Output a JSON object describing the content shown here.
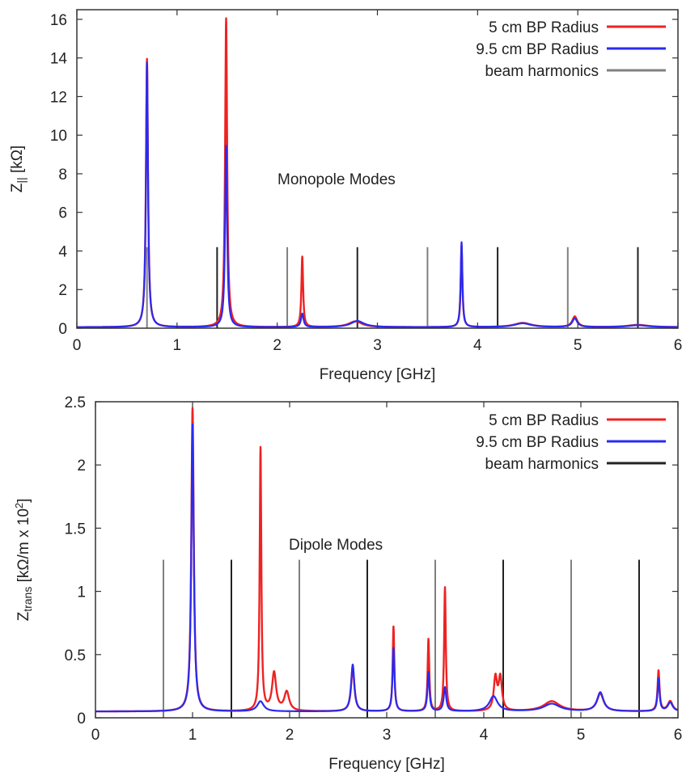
{
  "chart_data": [
    {
      "type": "line",
      "annotation": "Monopole Modes",
      "xlabel": "Frequency [GHz]",
      "ylabel_main": "Z",
      "ylabel_sub": "||",
      "ylabel_unit": " [kΩ]",
      "xlim": [
        0,
        6
      ],
      "ylim": [
        0,
        16.5
      ],
      "xticks": [
        0,
        1,
        2,
        3,
        4,
        5,
        6
      ],
      "yticks": [
        0,
        2,
        4,
        6,
        8,
        10,
        12,
        14,
        16
      ],
      "legend_position": "top-right",
      "colors": {
        "red": "#ee2222",
        "blue": "#2a2af0",
        "gray": "#7a7a7a",
        "black": "#222222"
      },
      "harmonics": {
        "name": "beam harmonics",
        "height": 4.2,
        "x": [
          0.7,
          1.4,
          2.1,
          2.8,
          3.5,
          4.2,
          4.9,
          5.6
        ]
      },
      "series": [
        {
          "name": "5 cm BP Radius",
          "color": "#ee2222",
          "baseline": 0.05,
          "features": [
            {
              "x": 0.7,
              "peak": 13.9,
              "width": 0.012
            },
            {
              "x": 1.49,
              "peak": 16.0,
              "width": 0.012
            },
            {
              "x": 2.25,
              "peak": 3.65,
              "width": 0.01
            },
            {
              "x": 2.78,
              "peak": 0.3,
              "width": 0.08
            },
            {
              "x": 3.84,
              "peak": 4.2,
              "width": 0.01
            },
            {
              "x": 4.45,
              "peak": 0.22,
              "width": 0.1
            },
            {
              "x": 4.97,
              "peak": 0.55,
              "width": 0.03
            },
            {
              "x": 5.6,
              "peak": 0.12,
              "width": 0.12
            }
          ]
        },
        {
          "name": "9.5 cm BP Radius",
          "color": "#2a2af0",
          "baseline": 0.05,
          "features": [
            {
              "x": 0.7,
              "peak": 13.7,
              "width": 0.012
            },
            {
              "x": 1.49,
              "peak": 9.4,
              "width": 0.012
            },
            {
              "x": 2.25,
              "peak": 0.7,
              "width": 0.015
            },
            {
              "x": 2.8,
              "peak": 0.32,
              "width": 0.08
            },
            {
              "x": 3.84,
              "peak": 4.4,
              "width": 0.01
            },
            {
              "x": 4.45,
              "peak": 0.2,
              "width": 0.1
            },
            {
              "x": 4.97,
              "peak": 0.45,
              "width": 0.03
            },
            {
              "x": 5.6,
              "peak": 0.1,
              "width": 0.12
            }
          ]
        }
      ]
    },
    {
      "type": "line",
      "annotation": "Dipole Modes",
      "xlabel": "Frequency [GHz]",
      "ylabel_main": "Z",
      "ylabel_sub": "trans",
      "ylabel_unit": " [kΩ/m x 10",
      "ylabel_sup": "2",
      "ylabel_tail": "]",
      "xlim": [
        0,
        6
      ],
      "ylim": [
        0,
        2.5
      ],
      "xticks": [
        0,
        1,
        2,
        3,
        4,
        5,
        6
      ],
      "yticks": [
        0,
        0.5,
        1,
        1.5,
        2,
        2.5
      ],
      "legend_position": "top-right",
      "harmonics": {
        "name": "beam harmonics",
        "height": 1.25,
        "x": [
          0.7,
          1.4,
          2.1,
          2.8,
          3.5,
          4.2,
          4.9,
          5.6
        ]
      },
      "series": [
        {
          "name": "5 cm BP Radius",
          "color": "#ee2222",
          "baseline": 0.05,
          "features": [
            {
              "x": 1.0,
              "peak": 2.4,
              "width": 0.015
            },
            {
              "x": 1.7,
              "peak": 2.08,
              "width": 0.01
            },
            {
              "x": 1.84,
              "peak": 0.3,
              "width": 0.025
            },
            {
              "x": 1.97,
              "peak": 0.15,
              "width": 0.03
            },
            {
              "x": 2.65,
              "peak": 0.35,
              "width": 0.02
            },
            {
              "x": 3.07,
              "peak": 0.67,
              "width": 0.01
            },
            {
              "x": 3.43,
              "peak": 0.57,
              "width": 0.01
            },
            {
              "x": 3.6,
              "peak": 0.98,
              "width": 0.01
            },
            {
              "x": 4.12,
              "peak": 0.26,
              "width": 0.02
            },
            {
              "x": 4.17,
              "peak": 0.26,
              "width": 0.02
            },
            {
              "x": 4.7,
              "peak": 0.08,
              "width": 0.1
            },
            {
              "x": 5.2,
              "peak": 0.14,
              "width": 0.04
            },
            {
              "x": 5.8,
              "peak": 0.32,
              "width": 0.012
            },
            {
              "x": 5.92,
              "peak": 0.08,
              "width": 0.03
            }
          ]
        },
        {
          "name": "9.5 cm BP Radius",
          "color": "#2a2af0",
          "baseline": 0.05,
          "features": [
            {
              "x": 1.0,
              "peak": 2.27,
              "width": 0.015
            },
            {
              "x": 1.7,
              "peak": 0.08,
              "width": 0.04
            },
            {
              "x": 2.65,
              "peak": 0.37,
              "width": 0.02
            },
            {
              "x": 3.07,
              "peak": 0.5,
              "width": 0.012
            },
            {
              "x": 3.43,
              "peak": 0.31,
              "width": 0.012
            },
            {
              "x": 3.6,
              "peak": 0.19,
              "width": 0.015
            },
            {
              "x": 4.1,
              "peak": 0.12,
              "width": 0.05
            },
            {
              "x": 4.7,
              "peak": 0.06,
              "width": 0.1
            },
            {
              "x": 5.2,
              "peak": 0.15,
              "width": 0.04
            },
            {
              "x": 5.8,
              "peak": 0.26,
              "width": 0.012
            },
            {
              "x": 5.92,
              "peak": 0.07,
              "width": 0.03
            }
          ]
        }
      ]
    }
  ]
}
